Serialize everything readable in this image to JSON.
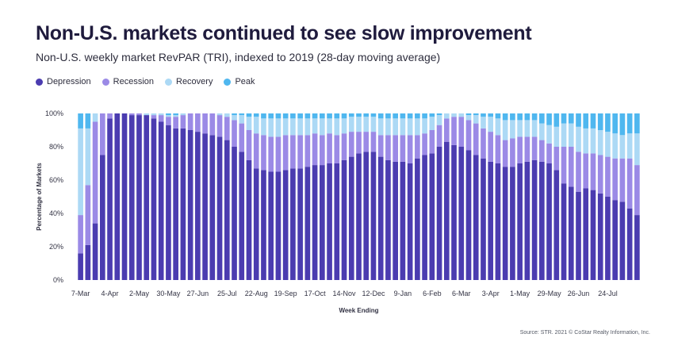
{
  "header": {
    "title": "Non-U.S. markets continued to see slow improvement",
    "subtitle": "Non-U.S. weekly market RevPAR (TRI), indexed to 2019 (28-day moving average)"
  },
  "legend": [
    {
      "label": "Depression",
      "color": "#4b3cb0",
      "icon": "circle"
    },
    {
      "label": "Recession",
      "color": "#9b8ae6",
      "icon": "circle"
    },
    {
      "label": "Recovery",
      "color": "#acd9f5",
      "icon": "circle"
    },
    {
      "label": "Peak",
      "color": "#4fb7ef",
      "icon": "circle"
    }
  ],
  "footer": {
    "source": "Source: STR. 2021 © CoStar Realty Information, Inc."
  },
  "chart_data": {
    "type": "bar",
    "stacked": true,
    "xlabel": "Week Ending",
    "ylabel": "Percentage of Markets",
    "ylim": [
      0,
      100
    ],
    "yticks": [
      "0%",
      "20%",
      "40%",
      "60%",
      "80%",
      "100%"
    ],
    "xtick_labels": [
      "7-Mar",
      "4-Apr",
      "2-May",
      "30-May",
      "27-Jun",
      "25-Jul",
      "22-Aug",
      "19-Sep",
      "17-Oct",
      "14-Nov",
      "12-Dec",
      "9-Jan",
      "6-Feb",
      "6-Mar",
      "3-Apr",
      "1-May",
      "29-May",
      "26-Jun",
      "24-Jul"
    ],
    "xtick_every": 4,
    "grid": false,
    "legend_position": "top-left",
    "series": [
      {
        "name": "Depression",
        "color": "#4b3cb0",
        "values": [
          16,
          21,
          34,
          75,
          97,
          100,
          100,
          99,
          99,
          99,
          97,
          95,
          93,
          91,
          91,
          90,
          89,
          88,
          87,
          86,
          84,
          80,
          77,
          72,
          67,
          66,
          65,
          65,
          66,
          67,
          67,
          68,
          69,
          69,
          70,
          70,
          72,
          74,
          76,
          77,
          77,
          74,
          72,
          71,
          71,
          70,
          73,
          75,
          76,
          80,
          83,
          81,
          80,
          78,
          75,
          73,
          71,
          70,
          68,
          68,
          70,
          71,
          72,
          71,
          70,
          66,
          58,
          56,
          53,
          55,
          54,
          52,
          50,
          48,
          47,
          43,
          39
        ]
      },
      {
        "name": "Recession",
        "color": "#9b8ae6",
        "values": [
          23,
          36,
          61,
          25,
          3,
          0,
          0,
          1,
          1,
          0,
          2,
          4,
          5,
          7,
          8,
          10,
          11,
          12,
          13,
          13,
          14,
          16,
          17,
          18,
          21,
          21,
          21,
          21,
          21,
          20,
          20,
          19,
          19,
          18,
          18,
          17,
          16,
          15,
          13,
          12,
          12,
          13,
          15,
          16,
          16,
          17,
          14,
          13,
          14,
          13,
          14,
          17,
          18,
          18,
          19,
          18,
          18,
          17,
          16,
          17,
          16,
          15,
          14,
          13,
          12,
          14,
          22,
          24,
          24,
          21,
          22,
          23,
          24,
          25,
          26,
          30,
          30
        ]
      },
      {
        "name": "Recovery",
        "color": "#acd9f5",
        "values": [
          52,
          34,
          5,
          0,
          0,
          0,
          0,
          0,
          0,
          1,
          1,
          1,
          1,
          1,
          1,
          0,
          0,
          0,
          0,
          1,
          2,
          3,
          5,
          8,
          10,
          10,
          11,
          11,
          10,
          10,
          10,
          10,
          9,
          10,
          9,
          10,
          9,
          9,
          9,
          9,
          9,
          10,
          10,
          10,
          10,
          10,
          10,
          9,
          8,
          6,
          3,
          2,
          2,
          3,
          5,
          7,
          9,
          10,
          12,
          11,
          10,
          10,
          10,
          10,
          11,
          12,
          14,
          14,
          15,
          15,
          15,
          15,
          15,
          15,
          14,
          15,
          19
        ]
      },
      {
        "name": "Peak",
        "color": "#4fb7ef",
        "values": [
          9,
          9,
          0,
          0,
          0,
          0,
          0,
          0,
          0,
          0,
          0,
          0,
          1,
          1,
          0,
          0,
          0,
          0,
          0,
          0,
          0,
          1,
          1,
          2,
          2,
          3,
          3,
          3,
          3,
          3,
          3,
          3,
          3,
          3,
          3,
          3,
          3,
          2,
          2,
          2,
          2,
          3,
          3,
          3,
          3,
          3,
          3,
          3,
          2,
          1,
          0,
          0,
          0,
          1,
          1,
          2,
          2,
          3,
          4,
          4,
          4,
          4,
          4,
          6,
          7,
          8,
          6,
          6,
          8,
          9,
          9,
          10,
          11,
          12,
          13,
          12,
          12
        ]
      }
    ]
  }
}
